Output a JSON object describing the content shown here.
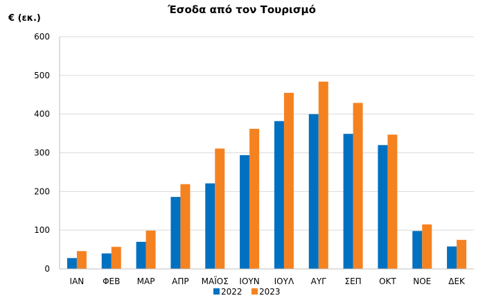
{
  "chart_data": {
    "type": "bar",
    "title": "Έσοδα από τον Τουρισμό",
    "ylabel": "€ (εκ.)",
    "xlabel": "",
    "ylim": [
      0,
      600
    ],
    "yticks": [
      0,
      100,
      200,
      300,
      400,
      500,
      600
    ],
    "grid": true,
    "legend_position": "bottom",
    "categories": [
      "ΙΑΝ",
      "ΦΕΒ",
      "ΜΑΡ",
      "ΑΠΡ",
      "ΜΑΪΟΣ",
      "ΙΟΥΝ",
      "ΙΟΥΛ",
      "ΑΥΓ",
      "ΣΕΠ",
      "ΟΚΤ",
      "ΝΟΕ",
      "ΔΕΚ"
    ],
    "series": [
      {
        "name": "2022",
        "color": "#0070C0",
        "values": [
          28,
          40,
          70,
          186,
          221,
          294,
          382,
          400,
          349,
          320,
          98,
          58
        ]
      },
      {
        "name": "2023",
        "color": "#F58220",
        "values": [
          46,
          57,
          99,
          219,
          311,
          362,
          455,
          484,
          429,
          347,
          115,
          75
        ]
      }
    ]
  }
}
